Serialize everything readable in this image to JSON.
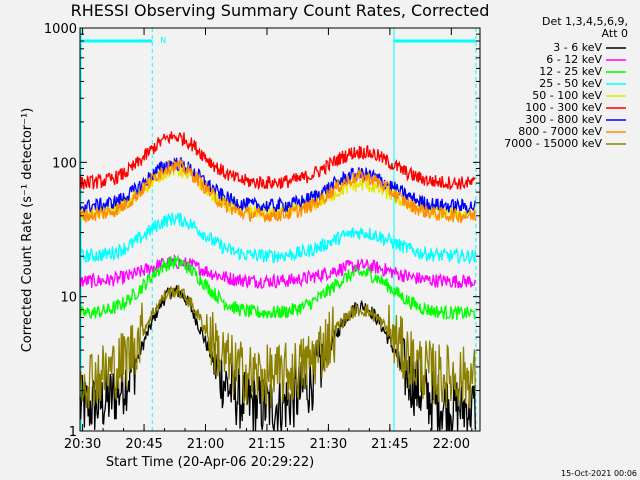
{
  "chart_data": {
    "type": "line",
    "title": "RHESSI Observing Summary Count Rates, Corrected",
    "xlabel": "Start Time (20-Apr-06 20:29:22)",
    "ylabel": "Corrected Count Rate (s⁻¹ detector⁻¹)",
    "y_scale": "log",
    "xlim": [
      "20:29:22",
      "22:07:00"
    ],
    "ylim": [
      1,
      1000
    ],
    "x_ticks": [
      "20:30",
      "20:45",
      "21:00",
      "21:15",
      "21:30",
      "21:45",
      "22:00"
    ],
    "y_ticks": [
      "1",
      "10",
      "100",
      "1000"
    ],
    "grid": false,
    "legend_position": "right",
    "legend_header": [
      "Det 1,3,4,5,6,9,",
      "Att 0"
    ],
    "time_markers": [
      "20:47:00",
      "21:46:00",
      "22:06:00"
    ],
    "night_bars": [
      {
        "label": "N",
        "start": "20:29:22",
        "end": "20:47:00"
      },
      {
        "label": "",
        "start": "21:46:00",
        "end": "22:06:00"
      }
    ],
    "series": [
      {
        "name": "3 - 6 keV",
        "color": "#000000",
        "peak1": 11,
        "peak2": 8.5,
        "baseline": 1.5
      },
      {
        "name": "6 - 12 keV",
        "color": "#ff00ff",
        "peak1": 18,
        "peak2": 17,
        "baseline": 13
      },
      {
        "name": "12 - 25 keV",
        "color": "#00ff00",
        "peak1": 18,
        "peak2": 15,
        "baseline": 7.5
      },
      {
        "name": "25 - 50 keV",
        "color": "#00ffff",
        "peak1": 38,
        "peak2": 30,
        "baseline": 20
      },
      {
        "name": "50 - 100 keV",
        "color": "#e6e600",
        "peak1": 88,
        "peak2": 68,
        "baseline": 42
      },
      {
        "name": "100 - 300 keV",
        "color": "#ff0000",
        "peak1": 155,
        "peak2": 120,
        "baseline": 70
      },
      {
        "name": "300 - 800 keV",
        "color": "#0000ff",
        "peak1": 98,
        "peak2": 82,
        "baseline": 47
      },
      {
        "name": "800 - 7000 keV",
        "color": "#ff8c00",
        "peak1": 94,
        "peak2": 78,
        "baseline": 40
      },
      {
        "name": "7000 - 15000 keV",
        "color": "#8b8000",
        "peak1": 11,
        "peak2": 8,
        "baseline": 2.5
      }
    ]
  },
  "footer": {
    "timestamp": "15-Oct-2021 00:06"
  }
}
